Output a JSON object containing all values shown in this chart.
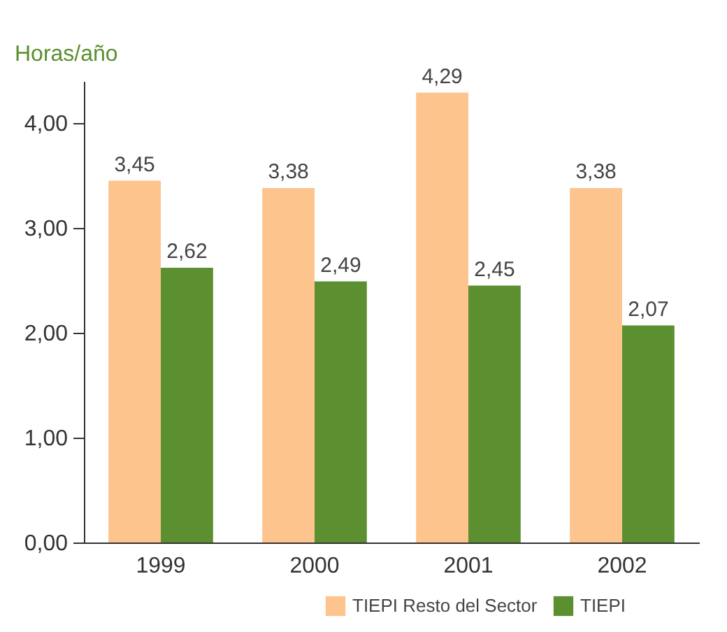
{
  "chart_data": {
    "type": "bar",
    "ylabel": "Horas/año",
    "categories": [
      "1999",
      "2000",
      "2001",
      "2002"
    ],
    "series": [
      {
        "name": "TIEPI Resto del Sector",
        "color": "#fdc48e",
        "values": [
          3.45,
          3.38,
          4.29,
          3.38
        ],
        "value_labels": [
          "3,45",
          "3,38",
          "4,29",
          "3,38"
        ]
      },
      {
        "name": "TIEPI",
        "color": "#5b8f2f",
        "values": [
          2.62,
          2.49,
          2.45,
          2.07
        ],
        "value_labels": [
          "2,62",
          "2,49",
          "2,45",
          "2,07"
        ]
      }
    ],
    "ylim": [
      0,
      4.4
    ],
    "yticks": [
      {
        "value": 0,
        "label": "0,00"
      },
      {
        "value": 1,
        "label": "1,00"
      },
      {
        "value": 2,
        "label": "2,00"
      },
      {
        "value": 3,
        "label": "3,00"
      },
      {
        "value": 4,
        "label": "4,00"
      }
    ],
    "grid": false,
    "legend": "bottom right"
  }
}
